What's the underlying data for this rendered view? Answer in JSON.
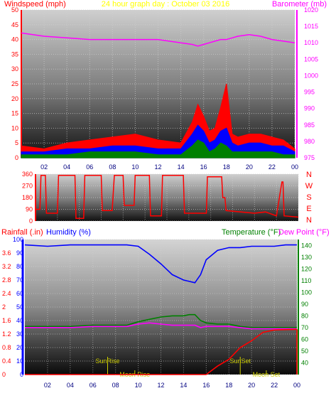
{
  "header": {
    "left_label": "Windspeed (mph)",
    "center_label": "24 hour graph day : October 03 2016",
    "right_label": "Barometer (mb)"
  },
  "colors": {
    "wind": "#ff0000",
    "avg_wind": "#0000ff",
    "gust_alt": "#008000",
    "barometer": "#ff00ff",
    "humidity": "#0000ff",
    "temperature": "#008000",
    "dewpoint": "#ff00ff",
    "rainfall": "#ff0000",
    "astro": "#cccc00",
    "title": "#ffff00",
    "axis_red": "#ff0000"
  },
  "chart_data": [
    {
      "type": "line",
      "id": "wind_barometer",
      "x": [
        0,
        2,
        4,
        6,
        8,
        10,
        12,
        14,
        15,
        15.5,
        16,
        16.5,
        17,
        17.5,
        18,
        18.5,
        19,
        20,
        21,
        22,
        23,
        24
      ],
      "xticks": [
        "02",
        "04",
        "06",
        "08",
        "10",
        "12",
        "14",
        "16",
        "18",
        "20",
        "22",
        "00"
      ],
      "xlim": [
        0,
        24
      ],
      "ylim_left": [
        0,
        50
      ],
      "yticks_left": [
        0,
        5,
        10,
        15,
        20,
        25,
        30,
        35,
        40,
        45,
        50
      ],
      "ylim_right": [
        975,
        1020
      ],
      "yticks_right": [
        975,
        980,
        985,
        990,
        995,
        1000,
        1005,
        1010,
        1015,
        1020
      ],
      "series": [
        {
          "name": "Windspeed (mph)",
          "axis": "left",
          "color": "#ff0000",
          "values": [
            4,
            3,
            5,
            6,
            7,
            8,
            6,
            5,
            12,
            18,
            14,
            9,
            10,
            17,
            25,
            8,
            7,
            8,
            8,
            7,
            6,
            3
          ]
        },
        {
          "name": "",
          "axis": "left",
          "color": "#0000ff",
          "values": [
            2,
            2,
            3,
            3,
            4,
            4,
            3,
            3,
            8,
            11,
            9,
            5,
            6,
            9,
            10,
            5,
            4,
            5,
            5,
            4,
            4,
            2
          ]
        },
        {
          "name": "",
          "axis": "left",
          "color": "#008000",
          "values": [
            1,
            1,
            1,
            2,
            2,
            2,
            1,
            1,
            4,
            6,
            5,
            2,
            3,
            5,
            4,
            2,
            2,
            2,
            2,
            2,
            1,
            1
          ]
        },
        {
          "name": "Barometer (mb)",
          "axis": "right",
          "color": "#ff00ff",
          "values": [
            1013,
            1012,
            1011.5,
            1011,
            1011,
            1011,
            1011,
            1010,
            1009.5,
            1009,
            1009.5,
            1010,
            1010.5,
            1011,
            1011,
            1011.5,
            1012,
            1012.5,
            1012,
            1011,
            1010.5,
            1010
          ]
        }
      ]
    },
    {
      "type": "line",
      "id": "wind_direction",
      "x": [
        0,
        0.4,
        0.5,
        0.9,
        1.0,
        2.0,
        2.1,
        3.6,
        3.7,
        4.4,
        4.5,
        6.0,
        6.1,
        7.0,
        7.2,
        8.0,
        8.1,
        9.0,
        9.1,
        10.4,
        10.5,
        11.5,
        11.6,
        13.5,
        13.6,
        15.6,
        15.7,
        17.0,
        17.1,
        17.3,
        17.4,
        20.0,
        21.0,
        22.0,
        22.5,
        22.6,
        22.7,
        24.0
      ],
      "xlim": [
        0,
        24
      ],
      "ylim": [
        0,
        360
      ],
      "yticks": [
        0,
        90,
        180,
        270,
        360
      ],
      "direction_labels": [
        "N",
        "W",
        "S",
        "E",
        "N"
      ],
      "series": [
        {
          "name": "",
          "color": "#ff0000",
          "values": [
            90,
            90,
            350,
            350,
            60,
            60,
            350,
            350,
            20,
            20,
            350,
            350,
            80,
            80,
            350,
            350,
            120,
            120,
            350,
            350,
            40,
            40,
            350,
            350,
            60,
            60,
            340,
            340,
            180,
            180,
            80,
            60,
            70,
            40,
            300,
            300,
            40,
            30
          ]
        }
      ]
    },
    {
      "type": "line",
      "id": "temp_humidity_rain",
      "x": [
        0,
        2,
        4,
        6,
        8,
        9,
        10,
        11,
        12,
        13,
        14,
        14.5,
        15,
        15.5,
        16,
        17,
        18,
        19,
        20,
        21,
        22,
        23,
        24
      ],
      "xticks": [
        "02",
        "04",
        "06",
        "08",
        "10",
        "12",
        "14",
        "16",
        "18",
        "20",
        "22",
        "00"
      ],
      "xlim": [
        0,
        24
      ],
      "rain_axis": {
        "label": "Rainfall (.in)",
        "ylim": [
          0,
          4
        ],
        "yticks": [
          0,
          0.4,
          0.8,
          1.2,
          1.6,
          2,
          2.4,
          2.8,
          3.2,
          3.6
        ]
      },
      "humidity_axis": {
        "label": "Humidity (%)",
        "ylim": [
          0,
          100
        ],
        "yticks": [
          0,
          10,
          20,
          30,
          40,
          50,
          60,
          70,
          80,
          90,
          100
        ]
      },
      "temp_axis": {
        "label": "Temperature (°F)",
        "ylim": [
          30,
          145
        ],
        "yticks": [
          40,
          50,
          60,
          70,
          80,
          90,
          100,
          110,
          120,
          130,
          140
        ]
      },
      "dew_label": "Dew Point (°F)",
      "series": [
        {
          "name": "Humidity (%)",
          "axis": "humidity",
          "color": "#0000ff",
          "values": [
            96,
            95,
            96,
            96,
            96,
            96,
            95,
            89,
            82,
            74,
            70,
            69,
            68,
            74,
            85,
            92,
            94,
            94,
            95,
            95,
            95,
            96,
            96
          ]
        },
        {
          "name": "Temperature (°F)",
          "axis": "temp",
          "color": "#008000",
          "values": [
            71,
            71,
            71,
            72,
            72,
            72,
            75,
            77,
            79,
            80,
            80,
            81,
            81,
            76,
            74,
            73,
            73,
            71,
            70,
            70,
            70,
            70,
            70
          ]
        },
        {
          "name": "Dew Point (°F)",
          "axis": "temp",
          "color": "#ff00ff",
          "values": [
            70,
            70,
            70,
            71,
            71,
            71,
            73,
            74,
            73,
            72,
            72,
            72,
            72,
            70,
            71,
            71,
            71,
            70,
            69,
            69,
            69,
            69,
            69
          ]
        },
        {
          "name": "Rainfall (.in)",
          "axis": "rain",
          "color": "#ff0000",
          "values": [
            0,
            0,
            0,
            0,
            0,
            0,
            0,
            0,
            0,
            0,
            0,
            0,
            0,
            0,
            0,
            0.25,
            0.45,
            0.8,
            1.0,
            1.25,
            1.32,
            1.33,
            1.34
          ]
        }
      ],
      "events": [
        {
          "label": "SunRise",
          "x": 7.3
        },
        {
          "label": "Moon Rise",
          "x": 9.7
        },
        {
          "label": "SunSet",
          "x": 19.0
        },
        {
          "label": "Moon Set",
          "x": 21.3
        }
      ]
    }
  ]
}
